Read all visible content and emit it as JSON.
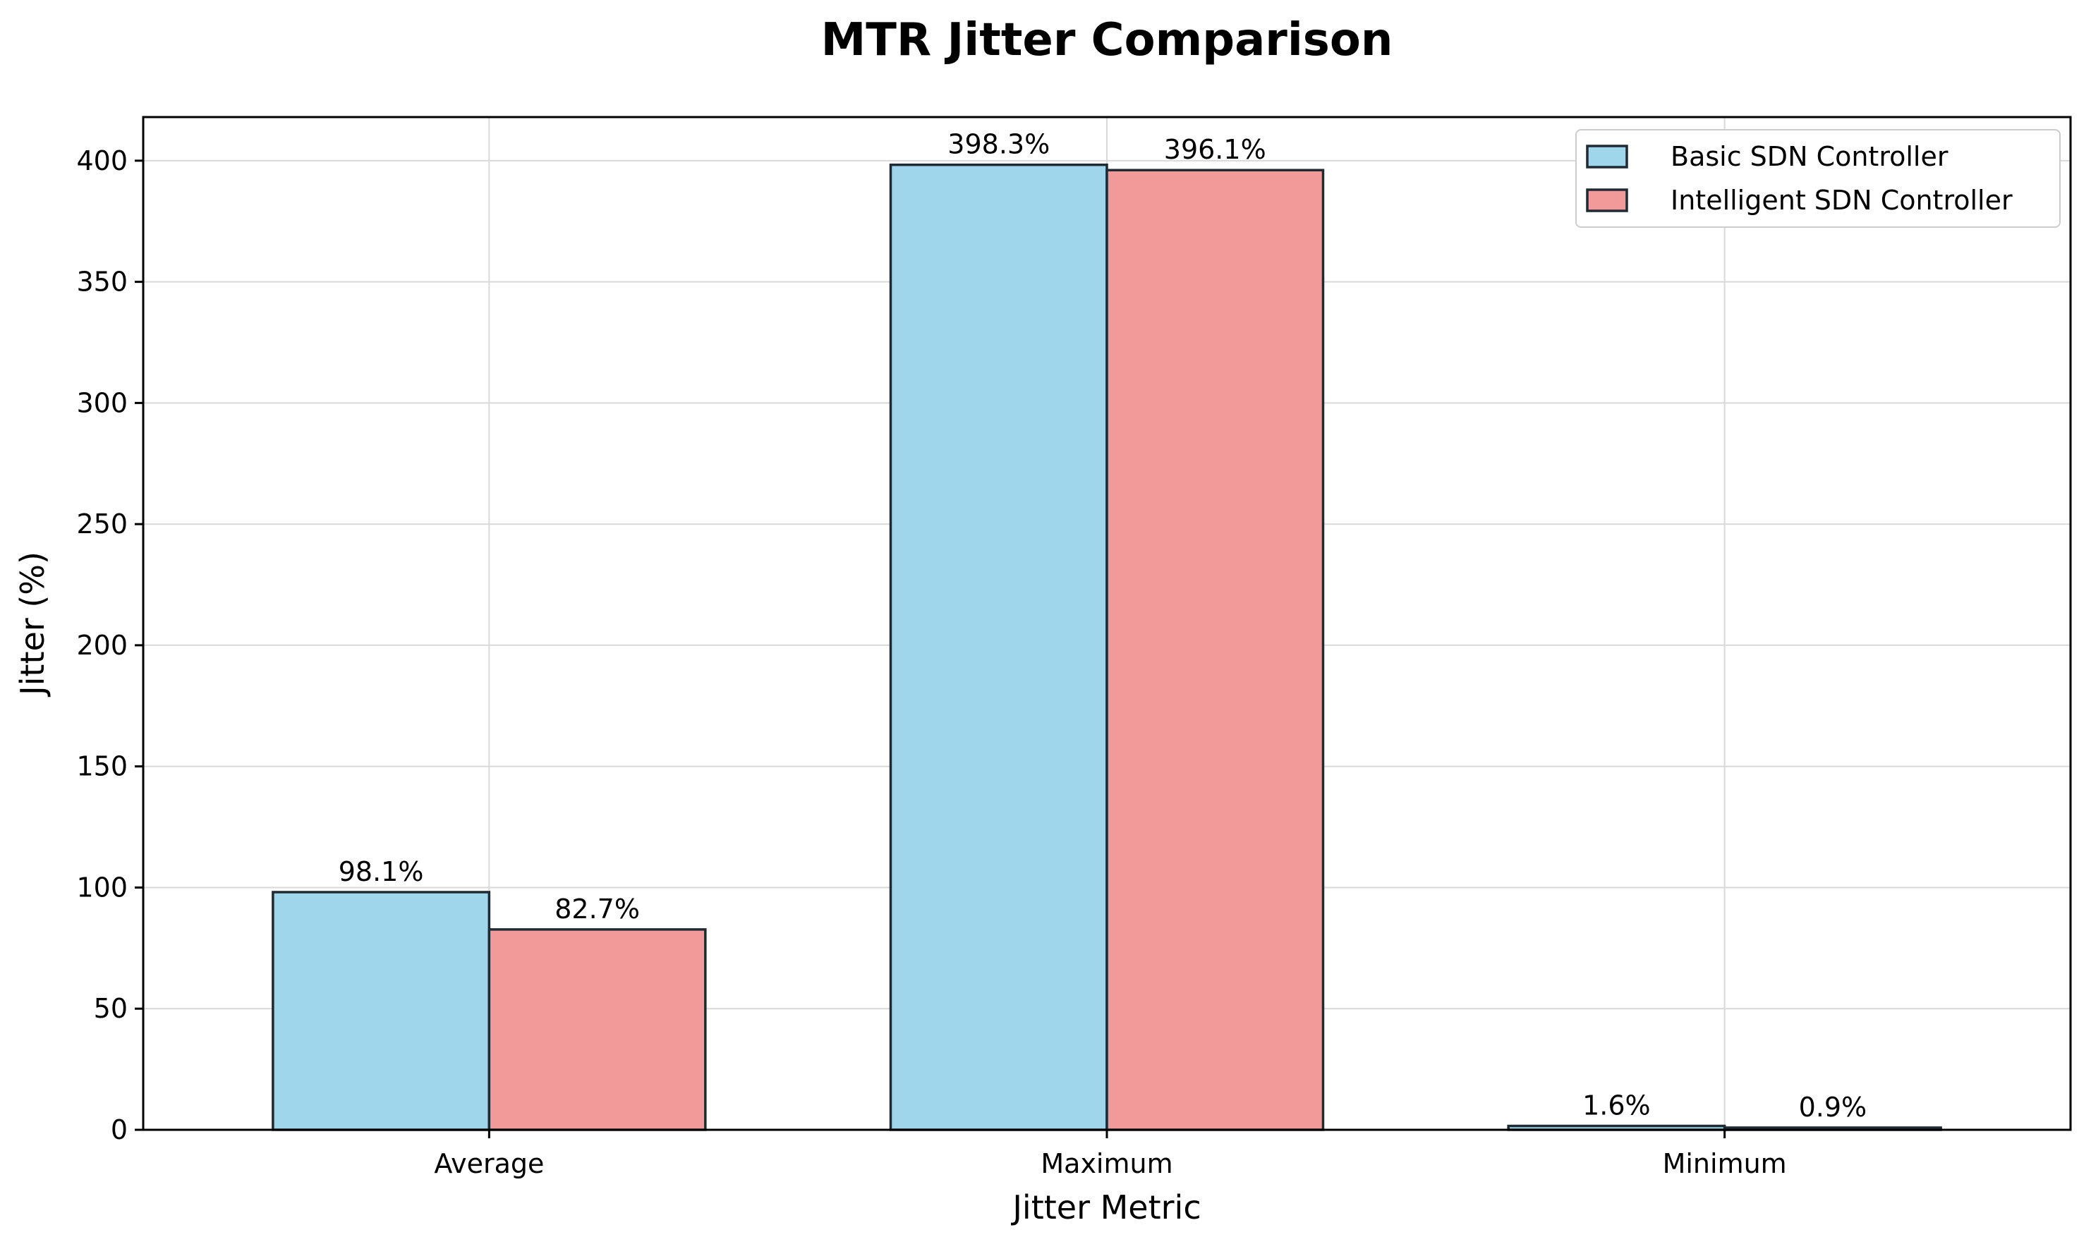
{
  "chart_data": {
    "type": "bar",
    "title": "MTR Jitter Comparison",
    "xlabel": "Jitter Metric",
    "ylabel": "Jitter (%)",
    "categories": [
      "Average",
      "Maximum",
      "Minimum"
    ],
    "series": [
      {
        "name": "Basic SDN Controller",
        "values": [
          98.1,
          398.3,
          1.6
        ],
        "labels": [
          "98.1%",
          "398.3%",
          "1.6%"
        ],
        "color": "#a0d6ec"
      },
      {
        "name": "Intelligent SDN Controller",
        "values": [
          82.7,
          396.1,
          0.9
        ],
        "labels": [
          "82.7%",
          "396.1%",
          "0.9%"
        ],
        "color": "#f29a9a"
      }
    ],
    "ylim": [
      0,
      418
    ],
    "yticks": [
      0,
      50,
      100,
      150,
      200,
      250,
      300,
      350,
      400
    ],
    "grid": true,
    "legend_position": "top-right"
  }
}
